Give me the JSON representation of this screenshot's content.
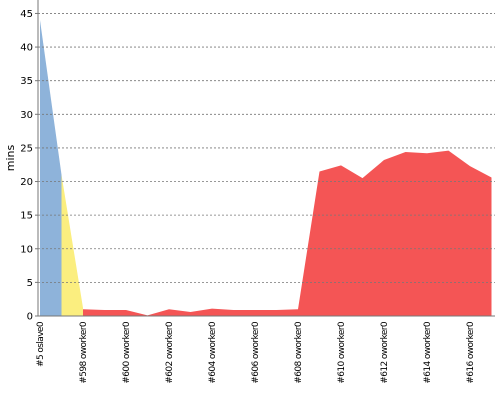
{
  "chart_data": {
    "type": "area",
    "y_label": "mins",
    "categories": [
      "#5 oslave0",
      null,
      "#598 oworker0",
      null,
      "#600 oworker0",
      null,
      "#602 oworker0",
      null,
      "#604 oworker0",
      null,
      "#606 oworker0",
      null,
      "#608 oworker0",
      null,
      "#610 oworker0",
      null,
      "#612 oworker0",
      null,
      "#614 oworker0",
      null,
      "#616 oworker0",
      null
    ],
    "series": [
      {
        "color": "#8eb3da",
        "values": [
          44,
          21,
          null,
          null,
          null,
          null,
          null,
          null,
          null,
          null,
          null,
          null,
          null,
          null,
          null,
          null,
          null,
          null,
          null,
          null,
          null,
          null
        ]
      },
      {
        "color": "#fbee7f",
        "values": [
          null,
          21,
          1.2,
          null,
          null,
          null,
          null,
          null,
          null,
          null,
          null,
          null,
          null,
          null,
          null,
          null,
          null,
          null,
          null,
          null,
          null,
          null
        ]
      },
      {
        "color": "#f45555",
        "values": [
          null,
          null,
          1.0,
          0.9,
          0.9,
          0.1,
          1.0,
          0.6,
          1.1,
          0.9,
          0.9,
          0.9,
          1.0,
          21.5,
          22.4,
          20.5,
          23.2,
          24.4,
          24.2,
          24.6,
          22.3,
          20.6
        ]
      }
    ],
    "ylim": [
      0,
      47
    ],
    "yticks": [
      0,
      5,
      10,
      15,
      20,
      25,
      30,
      35,
      40,
      45
    ],
    "grid": true
  }
}
